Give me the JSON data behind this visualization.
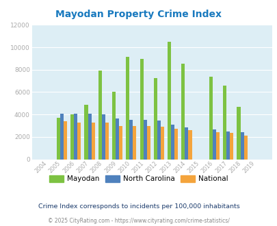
{
  "title": "Mayodan Property Crime Index",
  "years": [
    2004,
    2005,
    2006,
    2007,
    2008,
    2009,
    2010,
    2011,
    2012,
    2013,
    2014,
    2015,
    2016,
    2017,
    2018,
    2019
  ],
  "mayodan": [
    0,
    3700,
    4000,
    4850,
    7900,
    6000,
    9150,
    8950,
    7250,
    10500,
    8550,
    0,
    7350,
    6600,
    4700,
    0
  ],
  "north_carolina": [
    0,
    4100,
    4100,
    4100,
    4000,
    3650,
    3500,
    3550,
    3450,
    3100,
    2850,
    0,
    2650,
    2500,
    2400,
    0
  ],
  "national": [
    0,
    3400,
    3300,
    3250,
    3250,
    3000,
    2950,
    2950,
    2900,
    2750,
    2600,
    0,
    2400,
    2350,
    2100,
    0
  ],
  "bar_colors": {
    "mayodan": "#7dc242",
    "north_carolina": "#4f81bd",
    "national": "#f4a43c"
  },
  "ylim": [
    0,
    12000
  ],
  "yticks": [
    0,
    2000,
    4000,
    6000,
    8000,
    10000,
    12000
  ],
  "background_color": "#ddeef5",
  "grid_color": "#ffffff",
  "title_color": "#1a7abf",
  "subtitle": "Crime Index corresponds to incidents per 100,000 inhabitants",
  "footer": "© 2025 CityRating.com - https://www.cityrating.com/crime-statistics/",
  "legend_labels": [
    "Mayodan",
    "North Carolina",
    "National"
  ],
  "bar_width": 0.25,
  "tick_color": "#aaaaaa",
  "subtitle_color": "#1a3a6b",
  "footer_color": "#888888"
}
